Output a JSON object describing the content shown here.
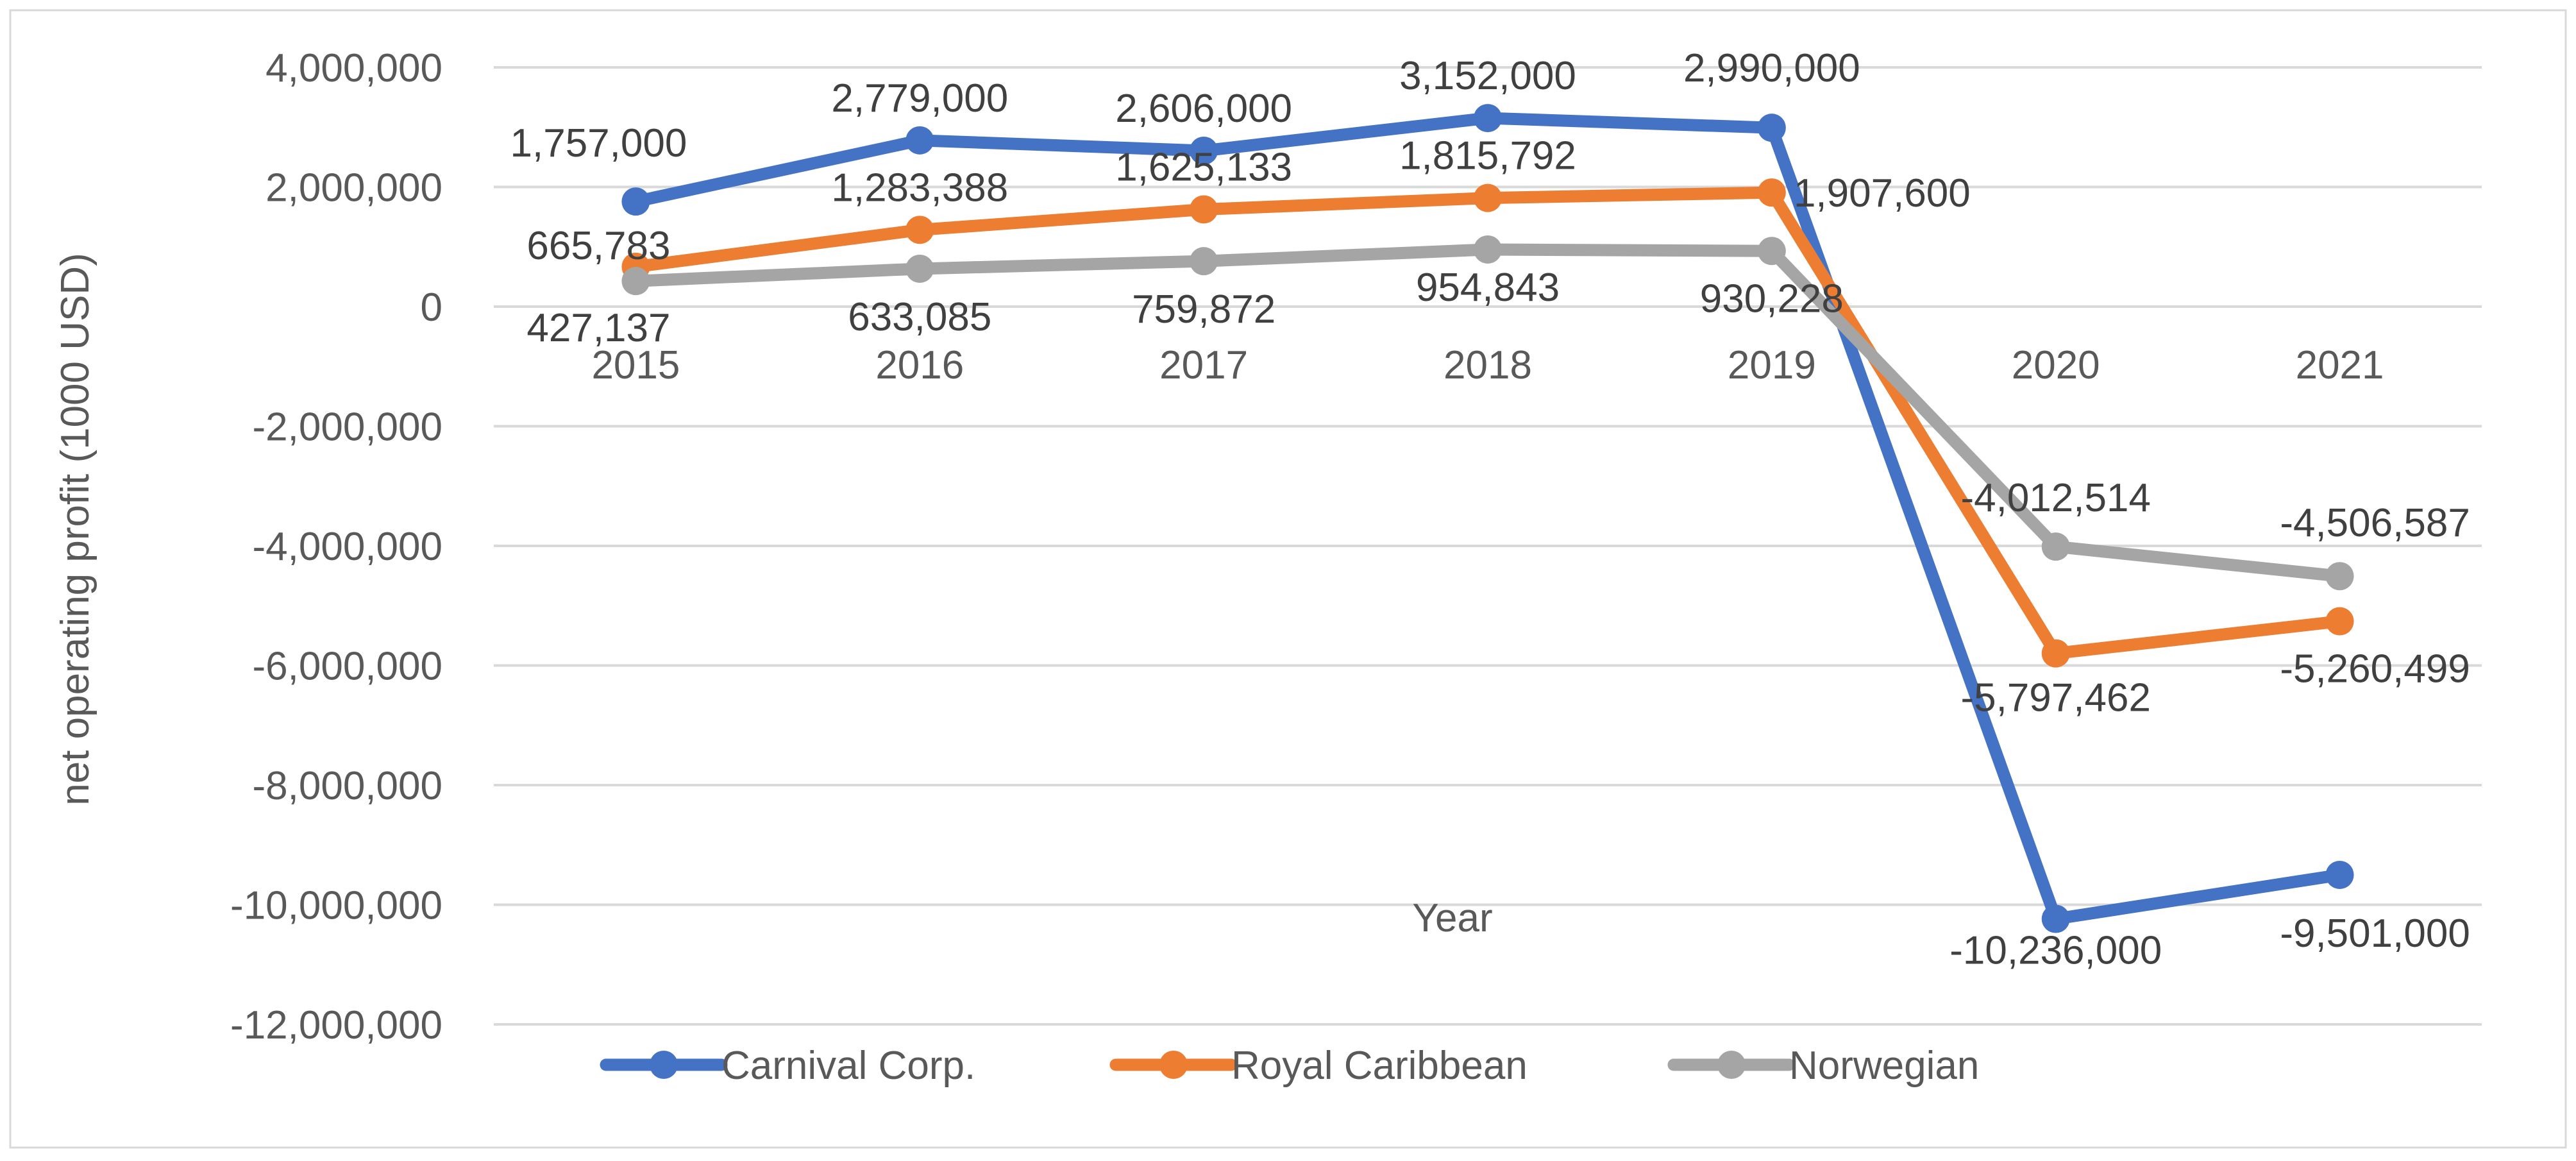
{
  "chart_data": {
    "type": "line",
    "title": "",
    "xlabel": "Year",
    "ylabel": "net operating profit (1000 USD)",
    "categories": [
      "2015",
      "2016",
      "2017",
      "2018",
      "2019",
      "2020",
      "2021"
    ],
    "ylim": [
      -12000000,
      4000000
    ],
    "yticks": [
      4000000,
      2000000,
      0,
      -2000000,
      -4000000,
      -6000000,
      -8000000,
      -10000000,
      -12000000
    ],
    "ytick_labels": [
      "4,000,000",
      "2,000,000",
      "0",
      "-2,000,000",
      "-4,000,000",
      "-6,000,000",
      "-8,000,000",
      "-10,000,000",
      "-12,000,000"
    ],
    "grid": true,
    "legend_position": "bottom",
    "series": [
      {
        "name": "Carnival Corp.",
        "color": "#4472C4",
        "values": [
          1757000,
          2779000,
          2606000,
          3152000,
          2990000,
          -10236000,
          -9501000
        ],
        "labels": [
          "1,757,000",
          "2,779,000",
          "2,606,000",
          "3,152,000",
          "2,990,000",
          "-10,236,000",
          "-9,501,000"
        ]
      },
      {
        "name": "Royal Caribbean",
        "color": "#ED7D31",
        "values": [
          665783,
          1283388,
          1625133,
          1815792,
          1907600,
          -5797462,
          -5260499
        ],
        "labels": [
          "665,783",
          "1,283,388",
          "1,625,133",
          "1,815,792",
          "1,907,600",
          "-5,797,462",
          "-5,260,499"
        ]
      },
      {
        "name": "Norwegian",
        "color": "#A5A5A5",
        "values": [
          427137,
          633085,
          759872,
          954843,
          930228,
          -4012514,
          -4506587
        ],
        "labels": [
          "427,137",
          "633,085",
          "759,872",
          "954,843",
          "930,228",
          "-4,012,514",
          "-4,506,587"
        ]
      }
    ]
  }
}
